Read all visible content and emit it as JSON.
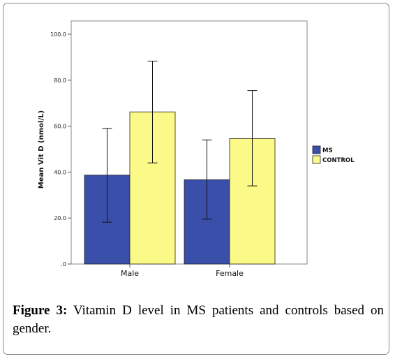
{
  "caption": {
    "label": "Figure 3:",
    "text": " Vitamin D level in MS patients and controls based on gender."
  },
  "chart_data": {
    "type": "bar",
    "categories": [
      "Male",
      "Female"
    ],
    "series": [
      {
        "name": "MS",
        "color": "#3a4faa",
        "values": [
          38.7,
          36.7
        ],
        "error_low": [
          18.2,
          19.5
        ],
        "error_high": [
          59.0,
          54.0
        ]
      },
      {
        "name": "CONTROL",
        "color": "#fbf987",
        "values": [
          66.2,
          54.6
        ],
        "error_low": [
          44.0,
          34.0
        ],
        "error_high": [
          88.3,
          75.5
        ]
      }
    ],
    "ylabel": "Mean Vit D (nmol/L)",
    "ylim": [
      0,
      100
    ],
    "yticks": [
      0,
      20,
      40,
      60,
      80,
      100
    ],
    "ytick_labels": [
      ".0",
      "20.0",
      "40.0",
      "60.0",
      "80.0",
      "100.0"
    ],
    "legend_position": "right",
    "grid": false
  }
}
